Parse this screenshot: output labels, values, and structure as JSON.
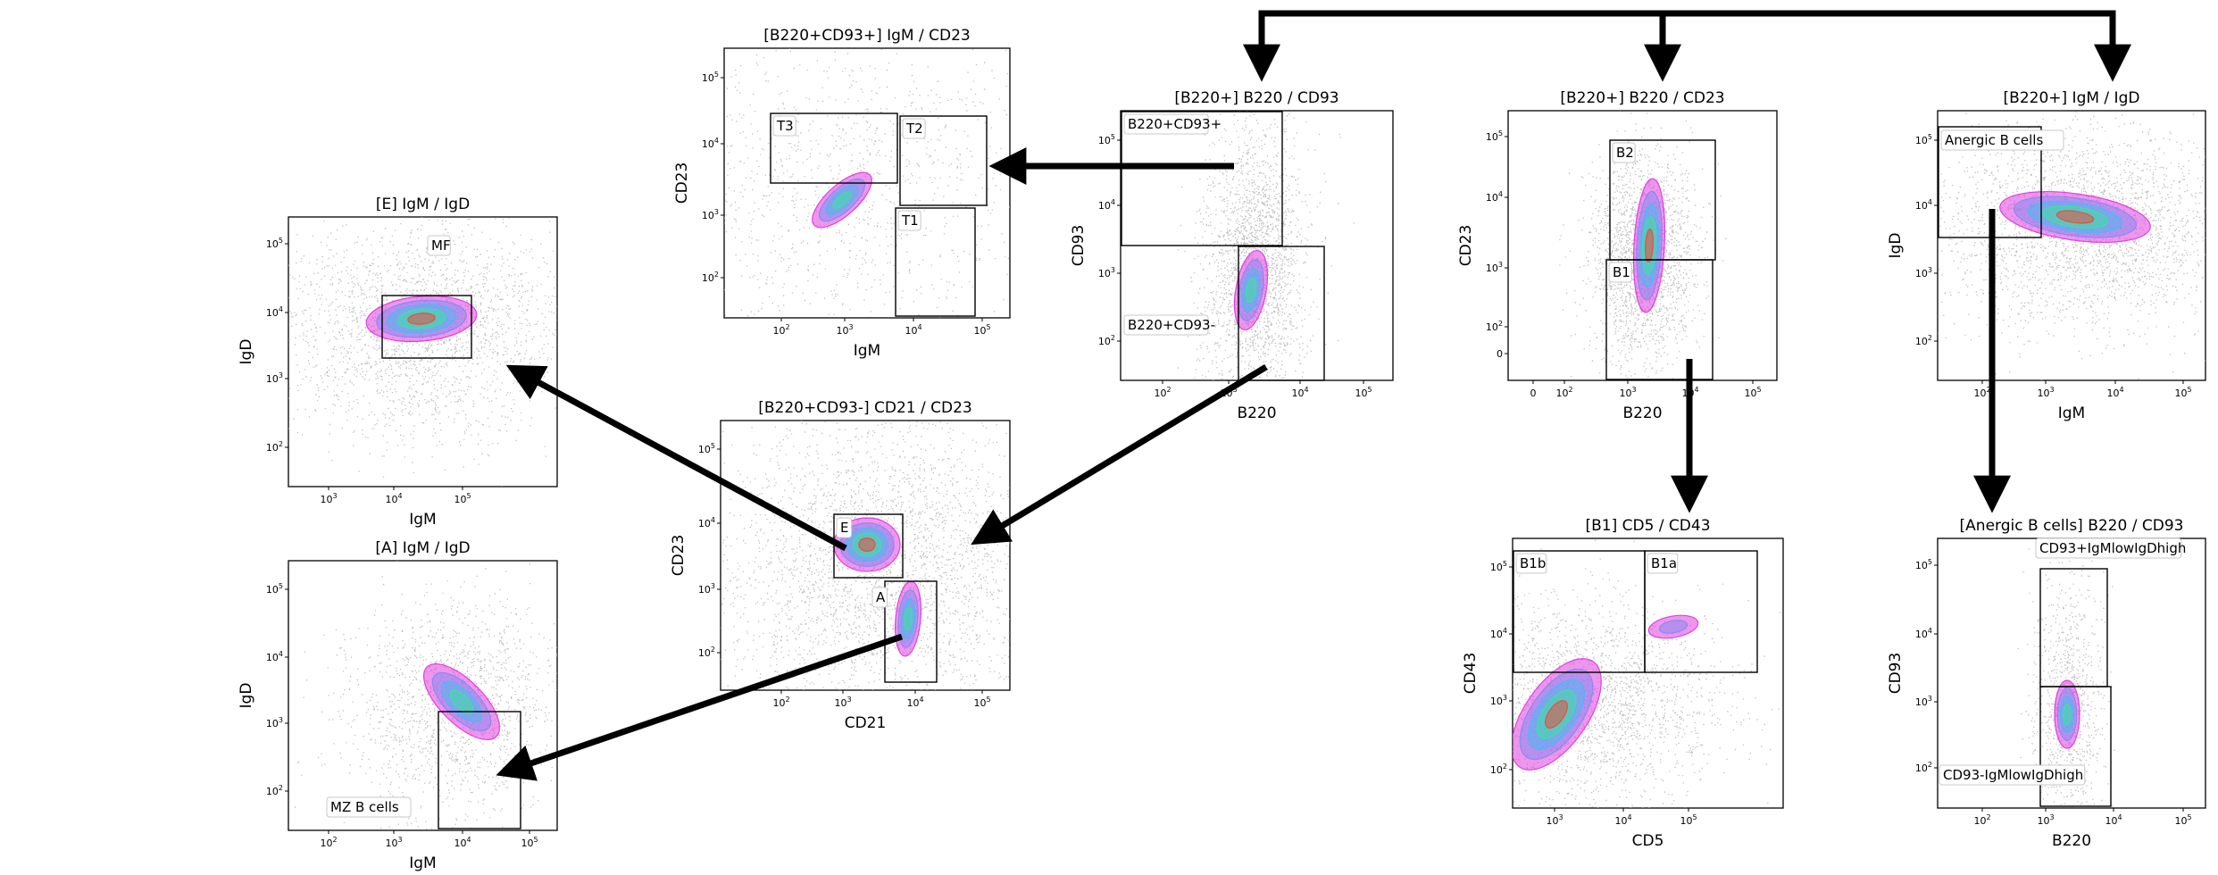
{
  "plots": [
    {
      "id": "b220cd93pos_igm_cd23",
      "title": "[B220+CD93+] IgM / CD23",
      "x_label": "IgM",
      "y_label": "CD23",
      "x_ticks": [
        "10^2",
        "10^3",
        "10^4",
        "10^5"
      ],
      "y_ticks": [
        "10^2",
        "10^3",
        "10^4",
        "10^5"
      ],
      "gates": [
        {
          "name": "T3",
          "label": "T3"
        },
        {
          "name": "T2",
          "label": "T2"
        },
        {
          "name": "T1",
          "label": "T1"
        }
      ]
    },
    {
      "id": "b220pos_b220_cd93",
      "title": "[B220+] B220 / CD93",
      "x_label": "B220",
      "y_label": "CD93",
      "x_ticks": [
        "10^2",
        "10^3",
        "10^4",
        "10^5"
      ],
      "y_ticks": [
        "10^2",
        "10^3",
        "10^4",
        "10^5"
      ],
      "gates": [
        {
          "name": "B220+CD93+",
          "label": "B220+CD93+"
        },
        {
          "name": "B220+CD93-",
          "label": "B220+CD93-"
        }
      ]
    },
    {
      "id": "b220pos_b220_cd23",
      "title": "[B220+] B220 / CD23",
      "x_label": "B220",
      "y_label": "CD23",
      "x_ticks": [
        "0",
        "10^2",
        "10^3",
        "10^4",
        "10^5"
      ],
      "y_ticks": [
        "0",
        "10^2",
        "10^3",
        "10^4",
        "10^5"
      ],
      "gates": [
        {
          "name": "B2",
          "label": "B2"
        },
        {
          "name": "B1",
          "label": "B1"
        }
      ]
    },
    {
      "id": "b220pos_igm_igd",
      "title": "[B220+] IgM / IgD",
      "x_label": "IgM",
      "y_label": "IgD",
      "x_ticks": [
        "10^2",
        "10^3",
        "10^4",
        "10^5"
      ],
      "y_ticks": [
        "10^2",
        "10^3",
        "10^4",
        "10^5"
      ],
      "gates": [
        {
          "name": "Anergic B cells",
          "label": "Anergic B cells"
        }
      ]
    },
    {
      "id": "e_igm_igd",
      "title": "[E] IgM / IgD",
      "x_label": "IgM",
      "y_label": "IgD",
      "x_ticks": [
        "10^3",
        "10^4",
        "10^5"
      ],
      "y_ticks": [
        "10^2",
        "10^3",
        "10^4",
        "10^5"
      ],
      "gates": [
        {
          "name": "MF",
          "label": "MF"
        }
      ]
    },
    {
      "id": "b220cd93neg_cd21_cd23",
      "title": "[B220+CD93-] CD21 / CD23",
      "x_label": "CD21",
      "y_label": "CD23",
      "x_ticks": [
        "10^2",
        "10^3",
        "10^4",
        "10^5"
      ],
      "y_ticks": [
        "10^2",
        "10^3",
        "10^4",
        "10^5"
      ],
      "gates": [
        {
          "name": "E",
          "label": "E"
        },
        {
          "name": "A",
          "label": "A"
        }
      ]
    },
    {
      "id": "a_igm_igd",
      "title": "[A] IgM / IgD",
      "x_label": "IgM",
      "y_label": "IgD",
      "x_ticks": [
        "10^2",
        "10^3",
        "10^4",
        "10^5"
      ],
      "y_ticks": [
        "10^2",
        "10^3",
        "10^4",
        "10^5"
      ],
      "gates": [
        {
          "name": "MZ B cells",
          "label": "MZ B cells"
        }
      ]
    },
    {
      "id": "b1_cd5_cd43",
      "title": "[B1] CD5 / CD43",
      "x_label": "CD5",
      "y_label": "CD43",
      "x_ticks": [
        "10^3",
        "10^4",
        "10^5"
      ],
      "y_ticks": [
        "10^2",
        "10^3",
        "10^4",
        "10^5"
      ],
      "gates": [
        {
          "name": "B1b",
          "label": "B1b"
        },
        {
          "name": "B1a",
          "label": "B1a"
        }
      ]
    },
    {
      "id": "anergic_b220_cd93",
      "title": "[Anergic B cells] B220 / CD93",
      "x_label": "B220",
      "y_label": "CD93",
      "x_ticks": [
        "10^2",
        "10^3",
        "10^4",
        "10^5"
      ],
      "y_ticks": [
        "10^2",
        "10^3",
        "10^4",
        "10^5"
      ],
      "gates": [
        {
          "name": "CD93+IgMlowIgDhigh",
          "label": "CD93+IgMlowIgDhigh"
        },
        {
          "name": "CD93-IgMlowIgDhigh",
          "label": "CD93-IgMlowIgDhigh"
        }
      ]
    }
  ],
  "arrows": [
    {
      "from": "B220+",
      "to": "[B220+] B220 / CD93"
    },
    {
      "from": "B220+",
      "to": "[B220+] B220 / CD23"
    },
    {
      "from": "B220+",
      "to": "[B220+] IgM / IgD"
    },
    {
      "from": "B220+CD93+",
      "to": "[B220+CD93+] IgM / CD23"
    },
    {
      "from": "B220+CD93-",
      "to": "[B220+CD93-] CD21 / CD23"
    },
    {
      "from": "E",
      "to": "[E] IgM / IgD"
    },
    {
      "from": "A",
      "to": "[A] IgM / IgD"
    },
    {
      "from": "B1",
      "to": "[B1] CD5 / CD43"
    },
    {
      "from": "Anergic B cells",
      "to": "[Anergic B cells] B220 / CD93"
    }
  ],
  "colors": {
    "events": "#b4b4b4",
    "contour_outer": "#e040e0",
    "contour_2": "#8a8af0",
    "contour_3": "#4fb8f0",
    "contour_4": "#3fe0a0",
    "contour_5": "#9be84a",
    "contour_peak": "#e8503a"
  }
}
